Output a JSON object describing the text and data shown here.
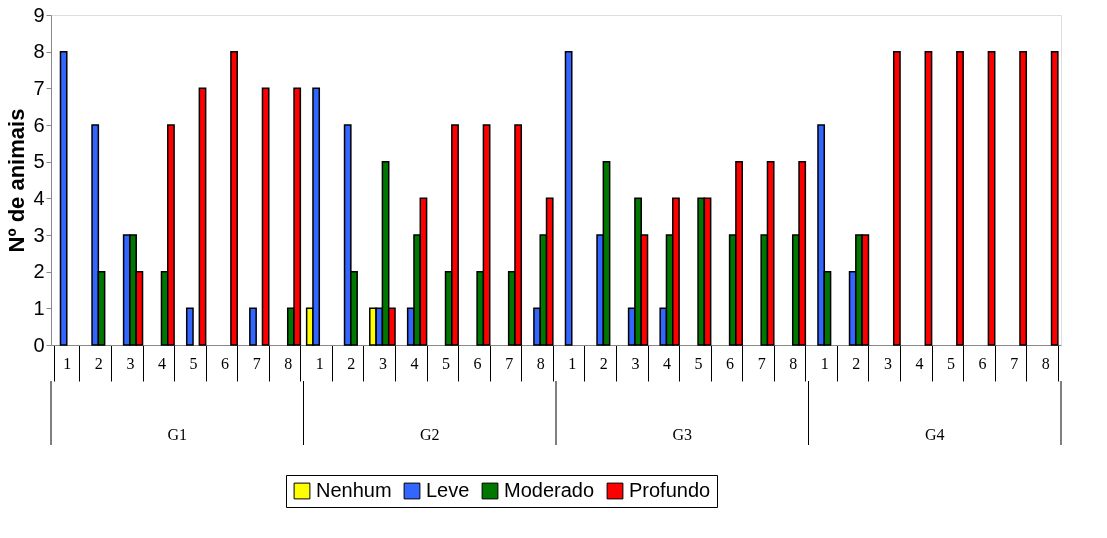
{
  "chart_data": {
    "type": "bar",
    "ylabel": "Nº de animais",
    "categories": [
      "1",
      "2",
      "3",
      "4",
      "5",
      "6",
      "7",
      "8",
      "1",
      "2",
      "3",
      "4",
      "5",
      "6",
      "7",
      "8",
      "1",
      "2",
      "3",
      "4",
      "5",
      "6",
      "7",
      "8",
      "1",
      "2",
      "3",
      "4",
      "5",
      "6",
      "7",
      "8"
    ],
    "series": [
      {
        "name": "Nenhum",
        "color": "#ffff00",
        "values": [
          null,
          null,
          null,
          null,
          null,
          null,
          null,
          null,
          1,
          null,
          1,
          null,
          null,
          null,
          null,
          null,
          null,
          null,
          null,
          null,
          null,
          null,
          null,
          null,
          null,
          null,
          null,
          null,
          null,
          null,
          null,
          null
        ]
      },
      {
        "name": "Leve",
        "color": "#3366ff",
        "values": [
          8,
          6,
          3,
          null,
          1,
          null,
          1,
          null,
          7,
          6,
          1,
          1,
          null,
          null,
          null,
          1,
          8,
          3,
          1,
          1,
          null,
          null,
          null,
          null,
          6,
          2,
          null,
          null,
          null,
          null,
          null,
          null
        ]
      },
      {
        "name": "Moderado",
        "color": "#007700",
        "values": [
          null,
          2,
          3,
          2,
          null,
          null,
          null,
          1,
          null,
          2,
          5,
          3,
          2,
          2,
          2,
          3,
          null,
          5,
          4,
          3,
          4,
          3,
          3,
          3,
          2,
          3,
          null,
          null,
          null,
          null,
          null,
          null
        ]
      },
      {
        "name": "Profundo",
        "color": "#ff0000",
        "values": [
          null,
          null,
          2,
          6,
          7,
          8,
          7,
          7,
          null,
          null,
          1,
          4,
          6,
          6,
          6,
          4,
          null,
          null,
          3,
          4,
          4,
          5,
          5,
          5,
          null,
          3,
          8,
          8,
          8,
          8,
          8,
          8
        ]
      }
    ],
    "ylim": [
      0,
      9
    ],
    "yticks": [
      0,
      1,
      2,
      3,
      4,
      5,
      6,
      7,
      8,
      9
    ],
    "grid": false,
    "legend": "bottom",
    "annotations": [
      "G1",
      "G2",
      "G3",
      "G4"
    ]
  }
}
